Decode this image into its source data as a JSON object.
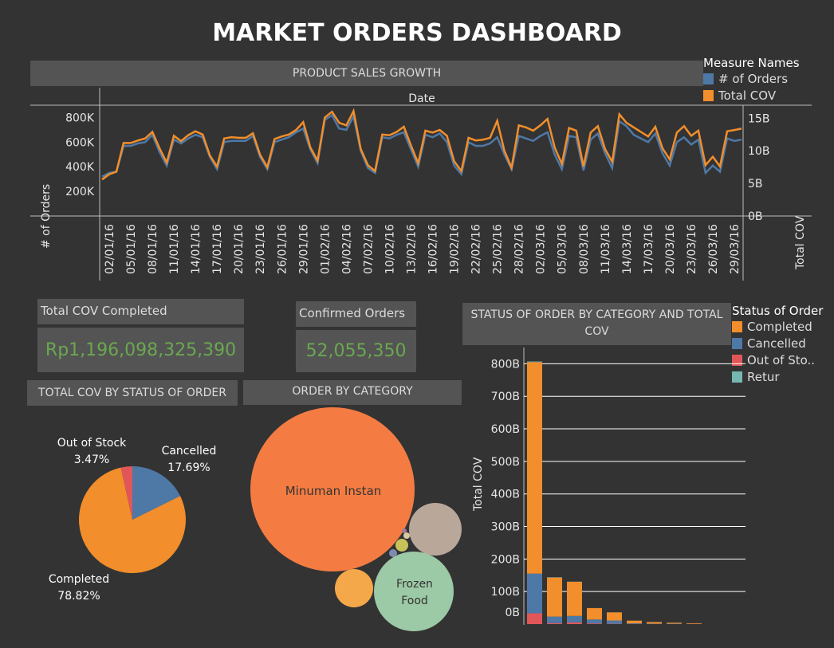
{
  "title": "MARKET ORDERS DASHBOARD",
  "colors": {
    "orders": "#4e79a7",
    "cov": "#f28e2b",
    "completed": "#f28e2b",
    "cancelled": "#4e79a7",
    "out_of_stock": "#e15759",
    "retur": "#76b7b2",
    "kpi": "#6aa84f",
    "panel": "#545454",
    "background": "#333333"
  },
  "line_panel": {
    "header": "PRODUCT SALES GROWTH",
    "x_title": "Date",
    "y_left_title": "# of Orders",
    "y_right_title": "Total COV",
    "y_left_ticks": [
      "800K",
      "600K",
      "400K",
      "200K"
    ],
    "y_right_ticks": [
      "15B",
      "10B",
      "5B",
      "0B"
    ],
    "x_ticks": [
      "02/01/16",
      "05/01/16",
      "08/01/16",
      "11/01/16",
      "14/01/16",
      "17/01/16",
      "20/01/16",
      "23/01/16",
      "26/01/16",
      "29/01/16",
      "01/02/16",
      "04/02/16",
      "07/02/16",
      "10/02/16",
      "13/02/16",
      "16/02/16",
      "19/02/16",
      "22/02/16",
      "25/02/16",
      "28/02/16",
      "02/03/16",
      "05/03/16",
      "08/03/16",
      "11/03/16",
      "14/03/16",
      "17/03/16",
      "20/03/16",
      "23/03/16",
      "26/03/16",
      "29/03/16"
    ],
    "legend_title": "Measure Names",
    "legend": [
      "# of Orders",
      "Total COV"
    ]
  },
  "kpis": {
    "cov_label": "Total COV Completed",
    "cov_value": "Rp1,196,098,325,390",
    "orders_label": "Confirmed Orders",
    "orders_value": "52,055,350"
  },
  "pie_panel": {
    "header": "TOTAL COV BY STATUS OF ORDER",
    "slices": [
      {
        "name": "Completed",
        "pct_label": "78.82%",
        "value": 78.82
      },
      {
        "name": "Cancelled",
        "pct_label": "17.69%",
        "value": 17.69
      },
      {
        "name": "Out of Stock",
        "pct_label": "3.47%",
        "value": 3.47
      }
    ]
  },
  "bubble_panel": {
    "header": "ORDER BY CATEGORY",
    "labels": {
      "minuman": "Minuman Instan",
      "frozen_line1": "Frozen",
      "frozen_line2": "Food"
    }
  },
  "bar_panel": {
    "header_line1": "STATUS OF ORDER BY CATEGORY AND TOTAL",
    "header_line2": "COV",
    "y_title": "Total COV",
    "y_ticks": [
      "800B",
      "700B",
      "600B",
      "500B",
      "400B",
      "300B",
      "200B",
      "100B",
      "0B"
    ],
    "legend_title": "Status of Order",
    "legend": [
      "Completed",
      "Cancelled",
      "Out of Sto..",
      "Retur"
    ]
  },
  "chart_data": [
    {
      "type": "line",
      "title": "PRODUCT SALES GROWTH",
      "xlabel": "Date",
      "ylabel": "# of Orders",
      "ylabel_right": "Total COV",
      "x_start": "2016-01-01",
      "x_end": "2016-03-31",
      "ylim_left": [
        0,
        900000
      ],
      "ylim_right": [
        0,
        17000000000
      ],
      "series": [
        {
          "name": "# of Orders",
          "axis": "left",
          "values": [
            320000,
            350000,
            360000,
            570000,
            570000,
            590000,
            600000,
            660000,
            520000,
            410000,
            620000,
            590000,
            630000,
            660000,
            640000,
            480000,
            380000,
            600000,
            610000,
            610000,
            610000,
            650000,
            480000,
            380000,
            600000,
            620000,
            640000,
            680000,
            710000,
            540000,
            430000,
            780000,
            820000,
            710000,
            700000,
            810000,
            530000,
            390000,
            350000,
            640000,
            630000,
            660000,
            680000,
            540000,
            400000,
            660000,
            640000,
            670000,
            600000,
            410000,
            340000,
            600000,
            570000,
            570000,
            590000,
            640000,
            500000,
            380000,
            650000,
            630000,
            610000,
            650000,
            680000,
            500000,
            380000,
            650000,
            640000,
            370000,
            620000,
            670000,
            510000,
            390000,
            770000,
            730000,
            660000,
            630000,
            600000,
            670000,
            510000,
            410000,
            600000,
            640000,
            580000,
            620000,
            350000,
            410000,
            360000,
            630000,
            610000,
            620000
          ]
        },
        {
          "name": "Total COV",
          "axis": "right",
          "values": [
            5600000000,
            6400000000,
            6800000000,
            11200000000,
            11200000000,
            11600000000,
            11900000000,
            12900000000,
            10400000000,
            8200000000,
            12300000000,
            11500000000,
            12400000000,
            13000000000,
            12500000000,
            9300000000,
            7600000000,
            11900000000,
            12100000000,
            12000000000,
            12000000000,
            12700000000,
            9400000000,
            7500000000,
            11800000000,
            12200000000,
            12500000000,
            13200000000,
            14400000000,
            10500000000,
            8500000000,
            15100000000,
            16000000000,
            14300000000,
            13900000000,
            16100000000,
            10300000000,
            7800000000,
            6900000000,
            12500000000,
            12400000000,
            12900000000,
            13700000000,
            10800000000,
            8100000000,
            13100000000,
            12800000000,
            13200000000,
            12300000000,
            8400000000,
            6900000000,
            12000000000,
            11600000000,
            11700000000,
            12000000000,
            14600000000,
            10000000000,
            7400000000,
            13900000000,
            13600000000,
            13100000000,
            13900000000,
            14900000000,
            10500000000,
            8000000000,
            13500000000,
            13100000000,
            7600000000,
            12800000000,
            13800000000,
            10300000000,
            8300000000,
            15600000000,
            14300000000,
            13600000000,
            12900000000,
            12200000000,
            13700000000,
            10400000000,
            8700000000,
            12800000000,
            13800000000,
            12300000000,
            13100000000,
            7800000000,
            9100000000,
            7600000000,
            13000000000,
            13200000000,
            13400000000
          ]
        }
      ],
      "legend": "right"
    },
    {
      "type": "pie",
      "title": "TOTAL COV BY STATUS OF ORDER",
      "categories": [
        "Completed",
        "Cancelled",
        "Out of Stock"
      ],
      "values": [
        78.82,
        17.69,
        3.47
      ]
    },
    {
      "type": "scatter",
      "title": "ORDER BY CATEGORY",
      "categories": [
        "Minuman Instan",
        "Frozen Food",
        "",
        "",
        "",
        "",
        "",
        ""
      ],
      "values": [
        100,
        23,
        20,
        11,
        2,
        1,
        0.5,
        0.3
      ]
    },
    {
      "type": "bar",
      "title": "STATUS OF ORDER BY CATEGORY AND TOTAL COV",
      "ylabel": "Total COV",
      "ylim": [
        0,
        850000000000
      ],
      "categories": [
        "",
        "",
        "",
        "",
        "",
        "",
        "",
        "",
        ""
      ],
      "series": [
        {
          "name": "Completed",
          "values": [
            650000000000,
            120000000000,
            105000000000,
            35000000000,
            25000000000,
            8000000000,
            5000000000,
            3000000000,
            2000000000
          ]
        },
        {
          "name": "Cancelled",
          "values": [
            122000000000,
            20000000000,
            20000000000,
            12000000000,
            10000000000,
            2000000000,
            1000000000,
            1000000000,
            500000000
          ]
        },
        {
          "name": "Out of Stock",
          "values": [
            33000000000,
            3000000000,
            5000000000,
            2000000000,
            1000000000,
            500000000,
            300000000,
            200000000,
            100000000
          ]
        },
        {
          "name": "Retur",
          "values": [
            2000000000,
            1000000000,
            500000000,
            300000000,
            200000000,
            100000000,
            100000000,
            50000000,
            50000000
          ]
        }
      ],
      "legend": "top-right"
    }
  ]
}
